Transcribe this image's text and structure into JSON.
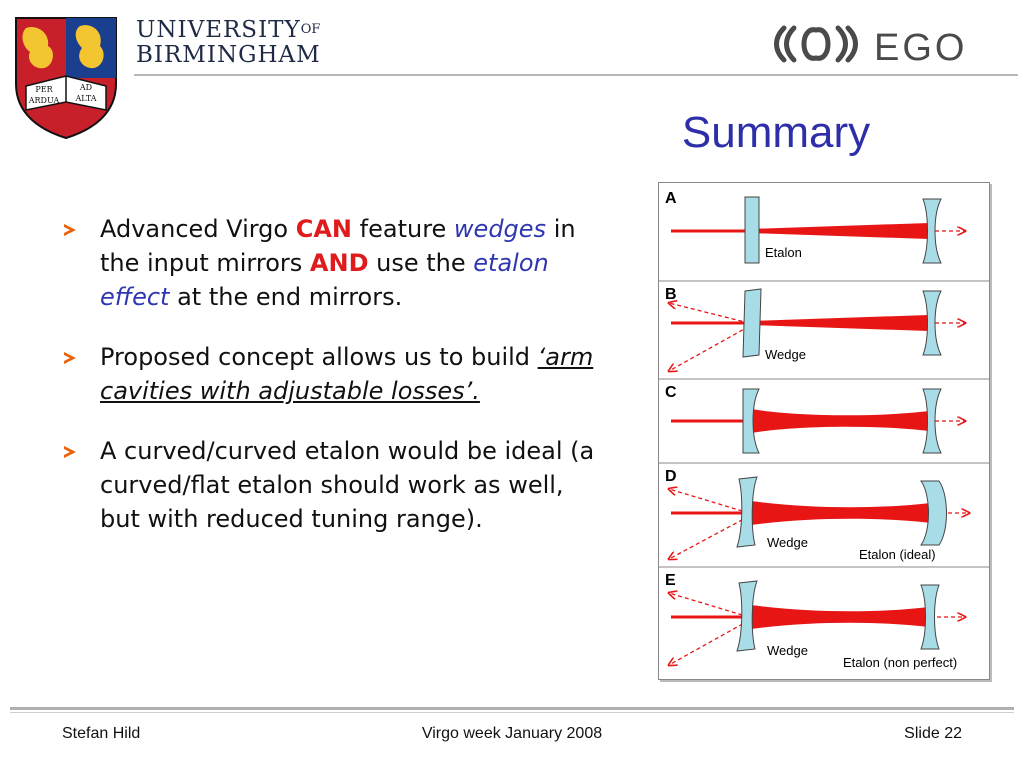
{
  "header": {
    "university_line1": "UNIVERSITY",
    "university_of": "OF",
    "university_line2": "BIRMINGHAM",
    "crest_text": [
      "PER",
      "AD",
      "ARDUA",
      "ALTA"
    ],
    "ego_logo_text": "EGO"
  },
  "slide": {
    "title": "Summary"
  },
  "bullets": [
    {
      "parts": [
        "Advanced Virgo ",
        "CAN",
        " feature ",
        "wedges",
        " in the input mirrors ",
        "AND",
        " use the ",
        "etalon effect",
        " at the end mirrors."
      ]
    },
    {
      "parts": [
        "Proposed concept allows us to build ",
        "‘arm cavities with adjustable losses’."
      ]
    },
    {
      "parts": [
        "A curved/curved etalon would be ideal (a curved/flat etalon should work as well, but with reduced tuning range)."
      ]
    }
  ],
  "figure": {
    "panels": [
      {
        "letter": "A",
        "labels": [
          "Etalon"
        ]
      },
      {
        "letter": "B",
        "labels": [
          "Wedge"
        ]
      },
      {
        "letter": "C",
        "labels": []
      },
      {
        "letter": "D",
        "labels": [
          "Wedge",
          "Etalon (ideal)"
        ]
      },
      {
        "letter": "E",
        "labels": [
          "Wedge",
          "Etalon (non perfect)"
        ]
      }
    ]
  },
  "footer": {
    "author": "Stefan Hild",
    "event": "Virgo week January 2008",
    "slide": "Slide 22"
  },
  "colors": {
    "title": "#2e2ea8",
    "emphasis_red": "#e01b1b",
    "emphasis_blue": "#2f37b0",
    "bullet_arrow": "#e8620a",
    "beam": "#e81515",
    "optic": "#a8dde8"
  }
}
